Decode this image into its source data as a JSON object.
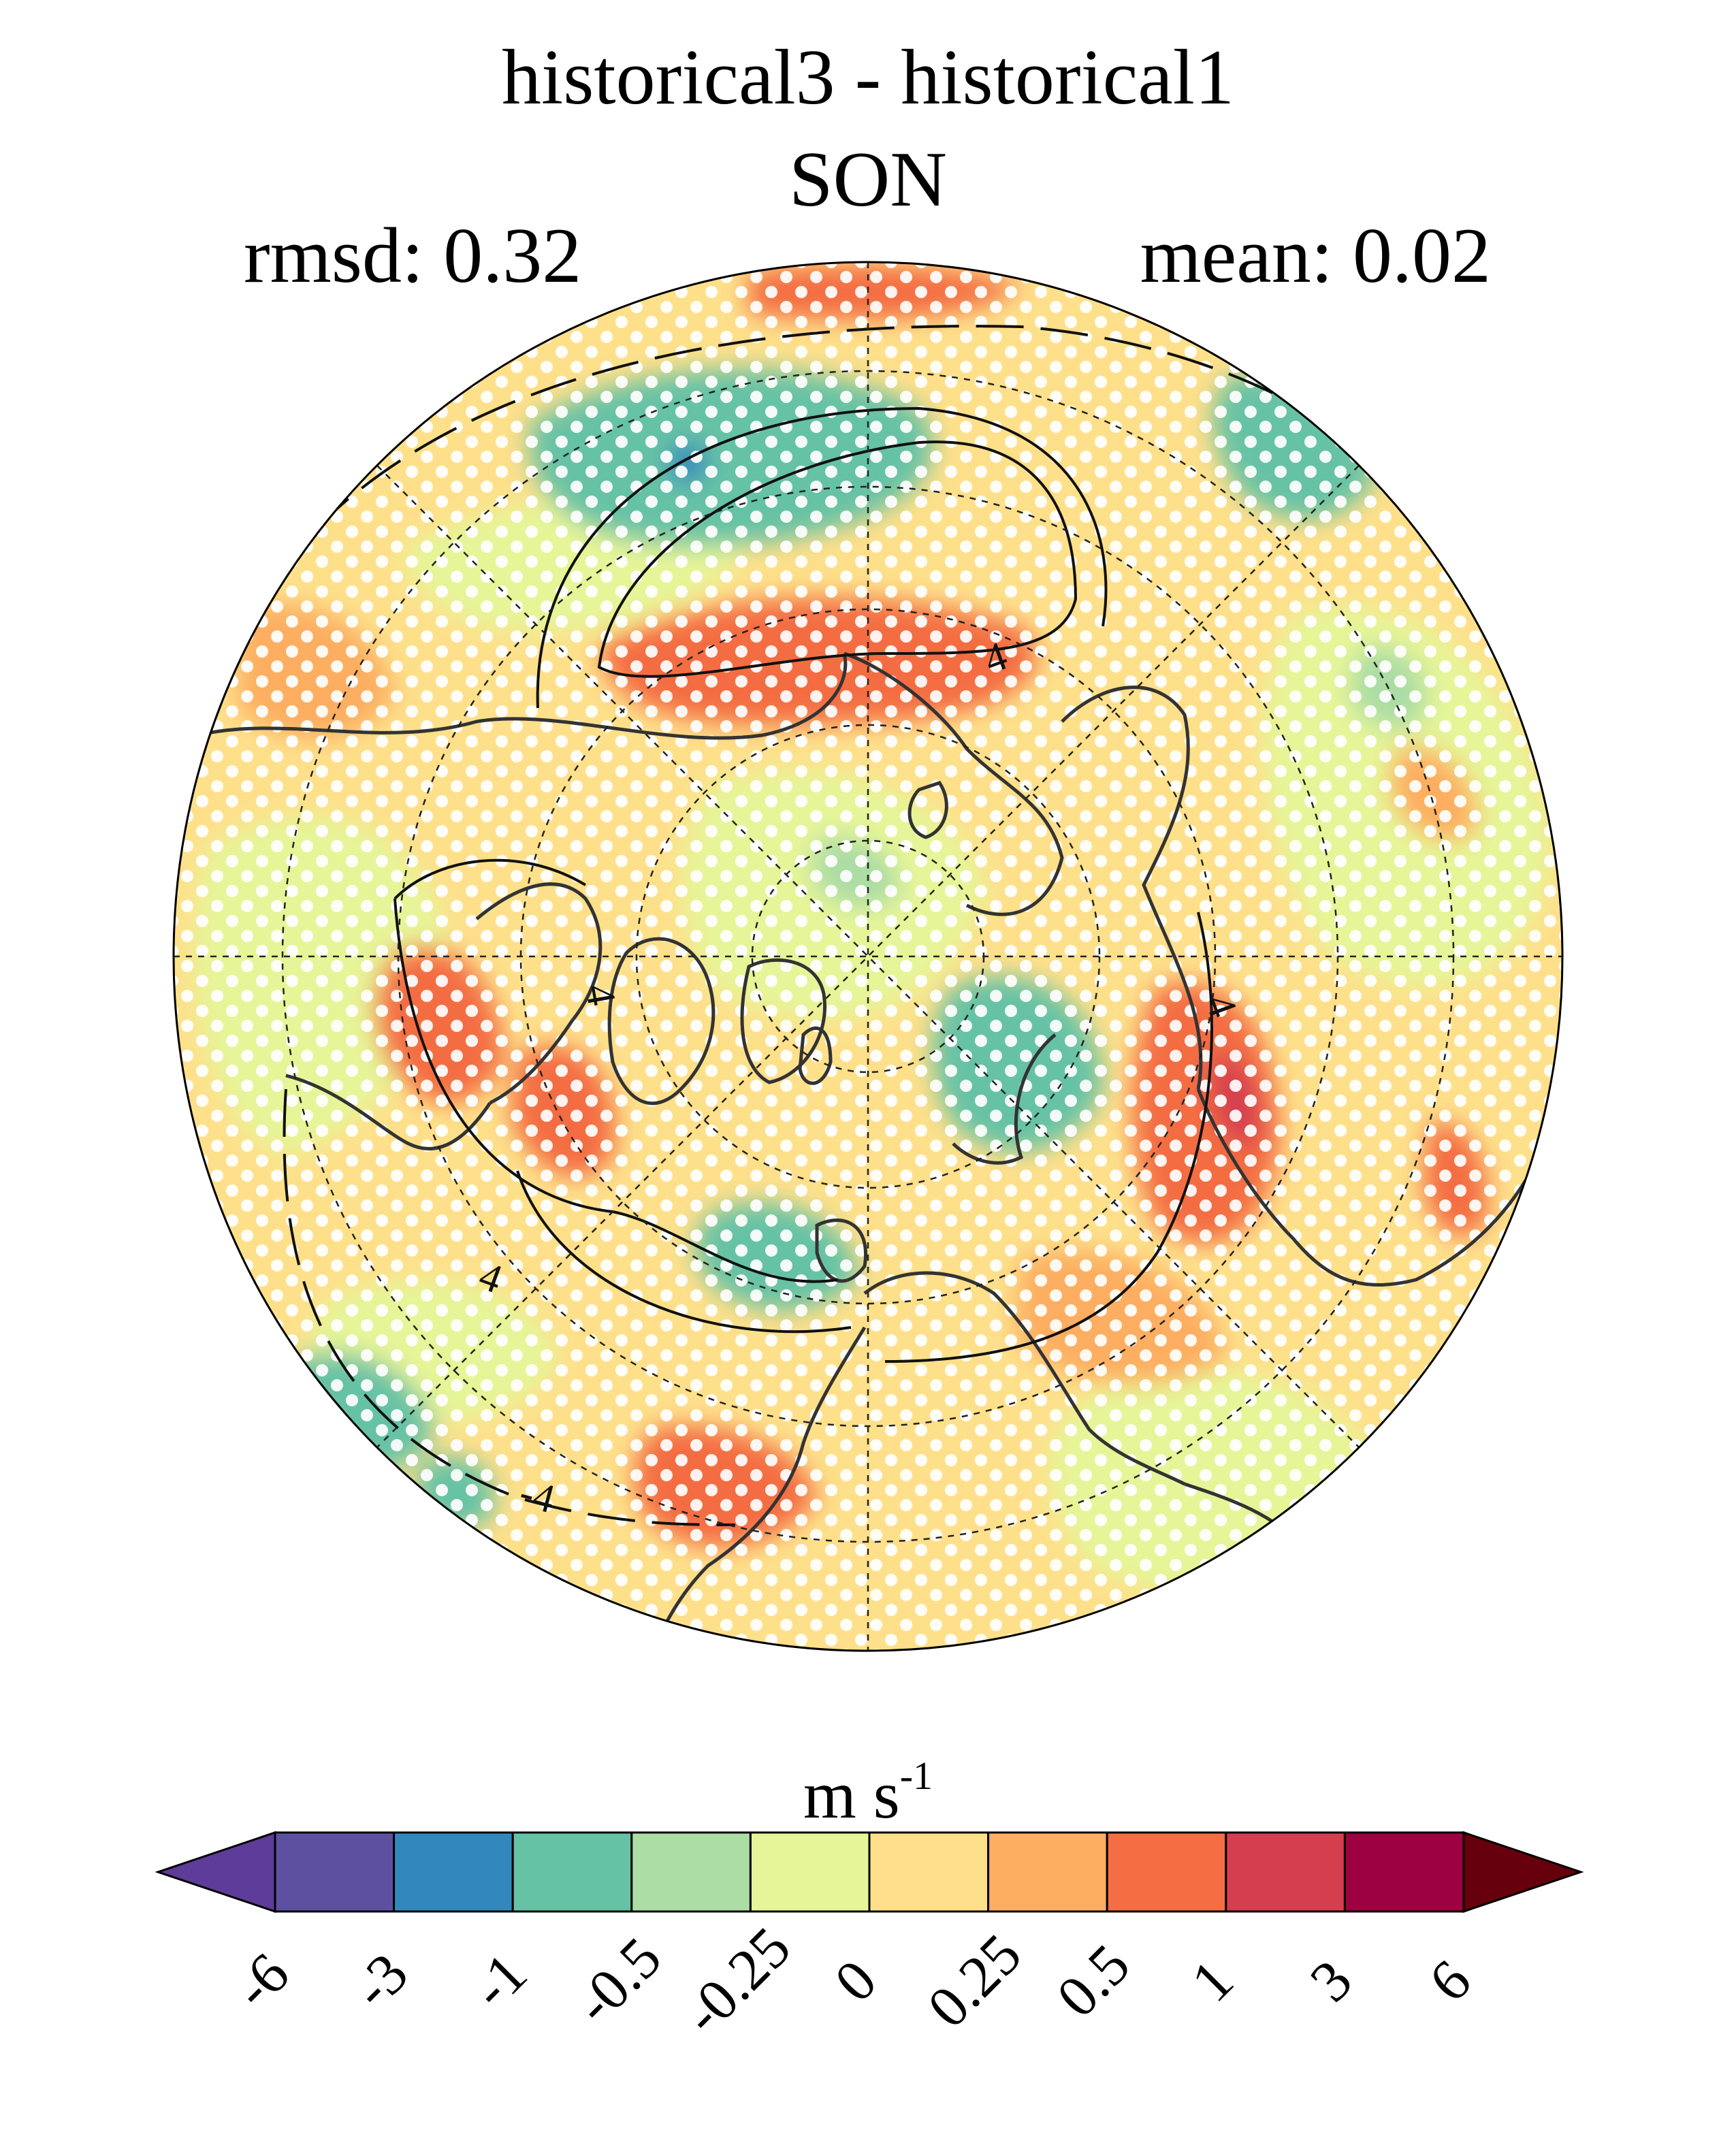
{
  "title": "historical3 - historical1",
  "subtitle": "SON",
  "stats": {
    "rmsd_label": "rmsd: 0.32",
    "mean_label": "mean: 0.02"
  },
  "map": {
    "projection": "north polar stereographic",
    "contour_label": "4",
    "contour_label_neg": "-4",
    "stippling": "white dots mark significant regions",
    "graticule": "dashed"
  },
  "colorbar": {
    "units": "m s",
    "units_exp": "-1",
    "ticks": [
      "-6",
      "-3",
      "-1",
      "-0.5",
      "-0.25",
      "0",
      "0.25",
      "0.5",
      "1",
      "3",
      "6"
    ],
    "colors": [
      "#5e3c99",
      "#5e50a1",
      "#3288bd",
      "#66c2a5",
      "#abdda4",
      "#e6f598",
      "#fee08b",
      "#fdae61",
      "#f46d43",
      "#d53e4f",
      "#9e0142",
      "#67000d"
    ]
  }
}
